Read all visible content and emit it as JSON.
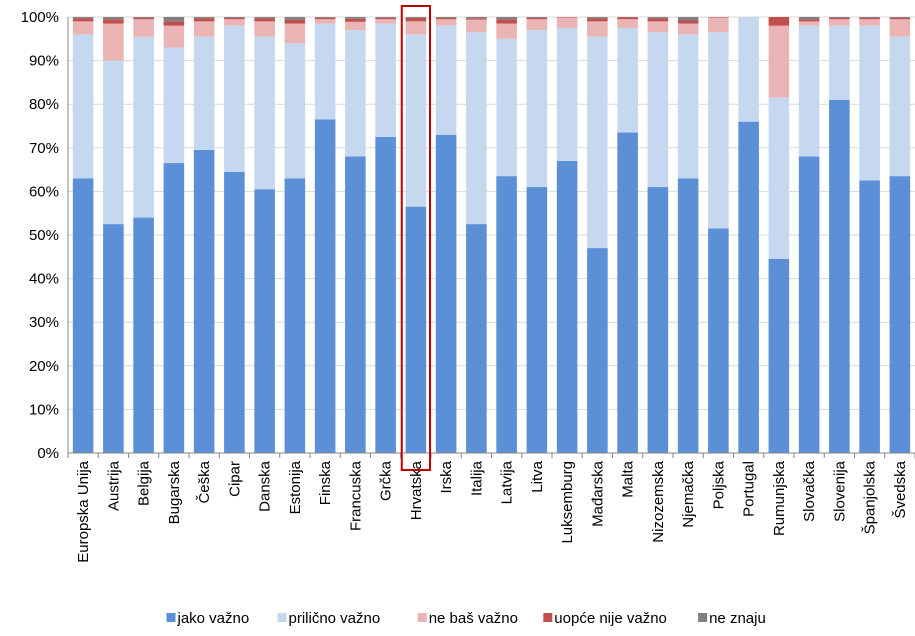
{
  "chart_data": {
    "type": "bar",
    "stacked": true,
    "categories": [
      "Europska Unija",
      "Austrija",
      "Belgija",
      "Bugarska",
      "Češka",
      "Cipar",
      "Danska",
      "Estonija",
      "Finska",
      "Francuska",
      "Grčka",
      "Hrvatska",
      "Irska",
      "Italija",
      "Latvija",
      "Litva",
      "Luksemburg",
      "Mađarska",
      "Malta",
      "Nizozemska",
      "Njemačka",
      "Poljska",
      "Portugal",
      "Rumunjska",
      "Slovačka",
      "Slovenija",
      "Španjolska",
      "Švedska"
    ],
    "highlighted_category": "Hrvatska",
    "series": [
      {
        "name": "jako važno",
        "color": "#5b8fd6",
        "values": [
          63,
          52.5,
          54,
          66.5,
          69.5,
          64.5,
          60.5,
          63,
          76.5,
          68,
          72.5,
          56.5,
          73,
          52.5,
          63.5,
          61,
          67,
          47,
          73.5,
          61,
          63,
          51.5,
          76,
          44.5,
          68,
          81,
          62.5,
          63.5
        ]
      },
      {
        "name": "prilično važno",
        "color": "#c6d8f0",
        "values": [
          33,
          37.5,
          41.5,
          26.5,
          26,
          33.5,
          35,
          31,
          22,
          29,
          26,
          39.5,
          25,
          44,
          31.5,
          36,
          30.5,
          48.5,
          24,
          35.5,
          33,
          45,
          24,
          37,
          30,
          17,
          35.5,
          32
        ]
      },
      {
        "name": "ne baš važno",
        "color": "#eab4b4",
        "values": [
          3,
          8.5,
          4,
          5,
          3.5,
          1.5,
          3.5,
          4.5,
          1,
          1.9,
          1,
          3,
          1.5,
          2.9,
          3.5,
          2.5,
          2.4,
          3.5,
          2,
          2.5,
          2.5,
          3.4,
          0,
          16.5,
          1,
          1.5,
          1.5,
          4
        ]
      },
      {
        "name": "uopće nije važno",
        "color": "#c0504d",
        "values": [
          0.7,
          1,
          0.3,
          1,
          0.7,
          0.3,
          0.7,
          0.9,
          0.3,
          0.7,
          0.3,
          0.8,
          0.3,
          0.3,
          1,
          0.3,
          0.1,
          0.7,
          0.4,
          0.7,
          0.7,
          0.1,
          0,
          2,
          0.5,
          0.3,
          0.3,
          0.3
        ]
      },
      {
        "name": "ne znaju",
        "color": "#808080",
        "values": [
          0.3,
          0.5,
          0.2,
          1,
          0.3,
          0.2,
          0.3,
          0.6,
          0.2,
          0.4,
          0.2,
          0.2,
          0.2,
          0.3,
          0.5,
          0.2,
          0,
          0.3,
          0.1,
          0.3,
          0.8,
          0,
          0,
          0,
          0.5,
          0.2,
          0.2,
          0.2
        ]
      }
    ],
    "yticks": [
      "0%",
      "10%",
      "20%",
      "30%",
      "40%",
      "50%",
      "60%",
      "70%",
      "80%",
      "90%",
      "100%"
    ],
    "ylim": [
      0,
      100
    ],
    "grid": true,
    "legend_position": "bottom",
    "title": "",
    "xlabel": "",
    "ylabel": ""
  }
}
